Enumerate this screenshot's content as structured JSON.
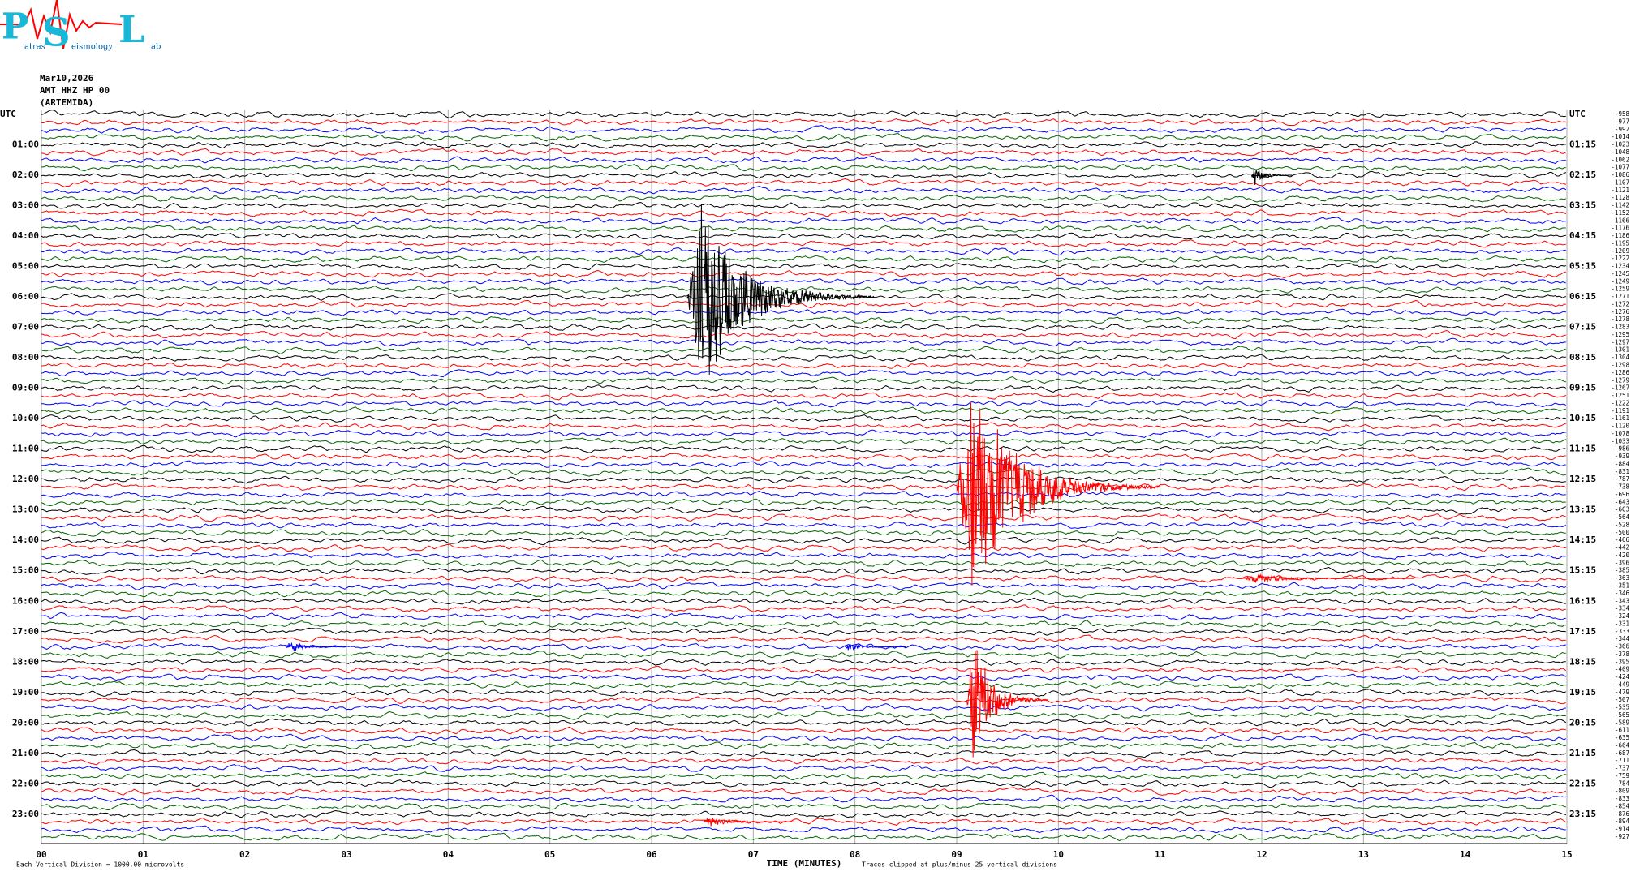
{
  "chart_data": {
    "type": "helicorder",
    "logo": {
      "letters": [
        "P",
        "S",
        "L"
      ],
      "words": [
        "atras",
        "eismology",
        "ab"
      ]
    },
    "date": "Mar10,2026",
    "station": "AMT HHZ HP 00",
    "site": "(ARTEMIDA)",
    "left_labels": [
      "UTC",
      "01:00",
      "02:00",
      "03:00",
      "04:00",
      "05:00",
      "06:00",
      "07:00",
      "08:00",
      "09:00",
      "10:00",
      "11:00",
      "12:00",
      "13:00",
      "14:00",
      "15:00",
      "16:00",
      "17:00",
      "18:00",
      "19:00",
      "20:00",
      "21:00",
      "22:00",
      "23:00"
    ],
    "right_labels": [
      "UTC",
      "01:15",
      "02:15",
      "03:15",
      "04:15",
      "05:15",
      "06:15",
      "07:15",
      "08:15",
      "09:15",
      "10:15",
      "11:15",
      "12:15",
      "13:15",
      "14:15",
      "15:15",
      "16:15",
      "17:15",
      "18:15",
      "19:15",
      "20:15",
      "21:15",
      "22:15",
      "23:15"
    ],
    "trace_colors": [
      "#000000",
      "#ff0000",
      "#0000ff",
      "#006400"
    ],
    "offsets": [
      -958,
      -977,
      -992,
      -1014,
      -1023,
      -1048,
      -1062,
      -1077,
      -1086,
      -1107,
      -1121,
      -1128,
      -1142,
      -1152,
      -1166,
      -1176,
      -1186,
      -1195,
      -1209,
      -1222,
      -1234,
      -1245,
      -1249,
      -1259,
      -1271,
      -1272,
      -1276,
      -1278,
      -1283,
      -1295,
      -1297,
      -1301,
      -1304,
      -1298,
      -1286,
      -1279,
      -1267,
      -1251,
      -1222,
      -1191,
      -1161,
      -1120,
      -1078,
      -1033,
      -986,
      -939,
      -884,
      -831,
      -787,
      -738,
      -696,
      -643,
      -603,
      -564,
      -528,
      -500,
      -466,
      -442,
      -420,
      -396,
      -385,
      -363,
      -351,
      -346,
      -343,
      -334,
      -324,
      -331,
      -333,
      -344,
      -366,
      -378,
      -395,
      -409,
      -424,
      -449,
      -479,
      -507,
      -535,
      -565,
      -589,
      -611,
      -635,
      -664,
      -687,
      -711,
      -737,
      -759,
      -784,
      -809,
      -833,
      -854,
      -876,
      -894,
      -914,
      -927
    ],
    "xlim": [
      0,
      15
    ],
    "xticks": [
      {
        "value": 0,
        "label": "00"
      },
      {
        "value": 1,
        "label": "01"
      },
      {
        "value": 2,
        "label": "02"
      },
      {
        "value": 3,
        "label": "03"
      },
      {
        "value": 4,
        "label": "04"
      },
      {
        "value": 5,
        "label": "05"
      },
      {
        "value": 6,
        "label": "06"
      },
      {
        "value": 7,
        "label": "07"
      },
      {
        "value": 8,
        "label": "08"
      },
      {
        "value": 9,
        "label": "09"
      },
      {
        "value": 10,
        "label": "10"
      },
      {
        "value": 11,
        "label": "11"
      },
      {
        "value": 12,
        "label": "12"
      },
      {
        "value": 13,
        "label": "13"
      },
      {
        "value": 14,
        "label": "14"
      },
      {
        "value": 15,
        "label": "15"
      }
    ],
    "x_label": "TIME (MINUTES)",
    "scale_note": "Each Vertical Division = 1000.00 microvolts",
    "clip_note": "Traces clipped at plus/minus 25 vertical divisions",
    "events": [
      {
        "trace": 8,
        "start": 11.9,
        "end": 12.3,
        "peak": 1.5
      },
      {
        "trace": 24,
        "start": 6.35,
        "end": 8.2,
        "peak": 14
      },
      {
        "trace": 49,
        "start": 9.0,
        "end": 11.0,
        "peak": 16
      },
      {
        "trace": 61,
        "start": 11.8,
        "end": 13.5,
        "peak": 0.6
      },
      {
        "trace": 70,
        "start": 2.4,
        "end": 3.0,
        "peak": 0.8
      },
      {
        "trace": 70,
        "start": 7.9,
        "end": 8.5,
        "peak": 0.6
      },
      {
        "trace": 77,
        "start": 9.1,
        "end": 9.9,
        "peak": 9
      },
      {
        "trace": 93,
        "start": 6.5,
        "end": 7.4,
        "peak": 0.7
      }
    ]
  }
}
